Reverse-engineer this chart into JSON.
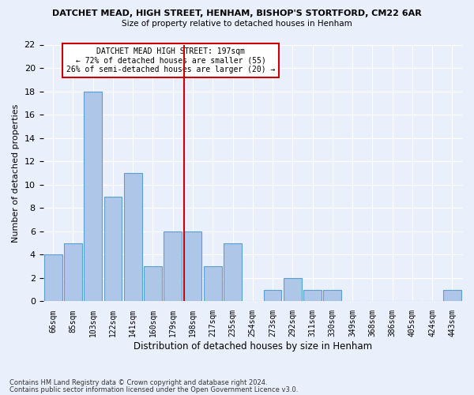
{
  "title1": "DATCHET MEAD, HIGH STREET, HENHAM, BISHOP'S STORTFORD, CM22 6AR",
  "title2": "Size of property relative to detached houses in Henham",
  "xlabel": "Distribution of detached houses by size in Henham",
  "ylabel": "Number of detached properties",
  "categories": [
    "66sqm",
    "85sqm",
    "103sqm",
    "122sqm",
    "141sqm",
    "160sqm",
    "179sqm",
    "198sqm",
    "217sqm",
    "235sqm",
    "254sqm",
    "273sqm",
    "292sqm",
    "311sqm",
    "330sqm",
    "349sqm",
    "368sqm",
    "386sqm",
    "405sqm",
    "424sqm",
    "443sqm"
  ],
  "values": [
    4,
    5,
    18,
    9,
    11,
    3,
    6,
    6,
    3,
    5,
    0,
    1,
    2,
    1,
    1,
    0,
    0,
    0,
    0,
    0,
    1
  ],
  "bar_color": "#aec6e8",
  "bar_edge_color": "#5a9fd4",
  "ylim": [
    0,
    22
  ],
  "yticks": [
    0,
    2,
    4,
    6,
    8,
    10,
    12,
    14,
    16,
    18,
    20,
    22
  ],
  "vline_color": "#cc0000",
  "annotation_lines": [
    "DATCHET MEAD HIGH STREET: 197sqm",
    "← 72% of detached houses are smaller (55)",
    "26% of semi-detached houses are larger (20) →"
  ],
  "footer1": "Contains HM Land Registry data © Crown copyright and database right 2024.",
  "footer2": "Contains public sector information licensed under the Open Government Licence v3.0.",
  "bg_color": "#eaf0fb",
  "plot_bg_color": "#eaf0fb"
}
